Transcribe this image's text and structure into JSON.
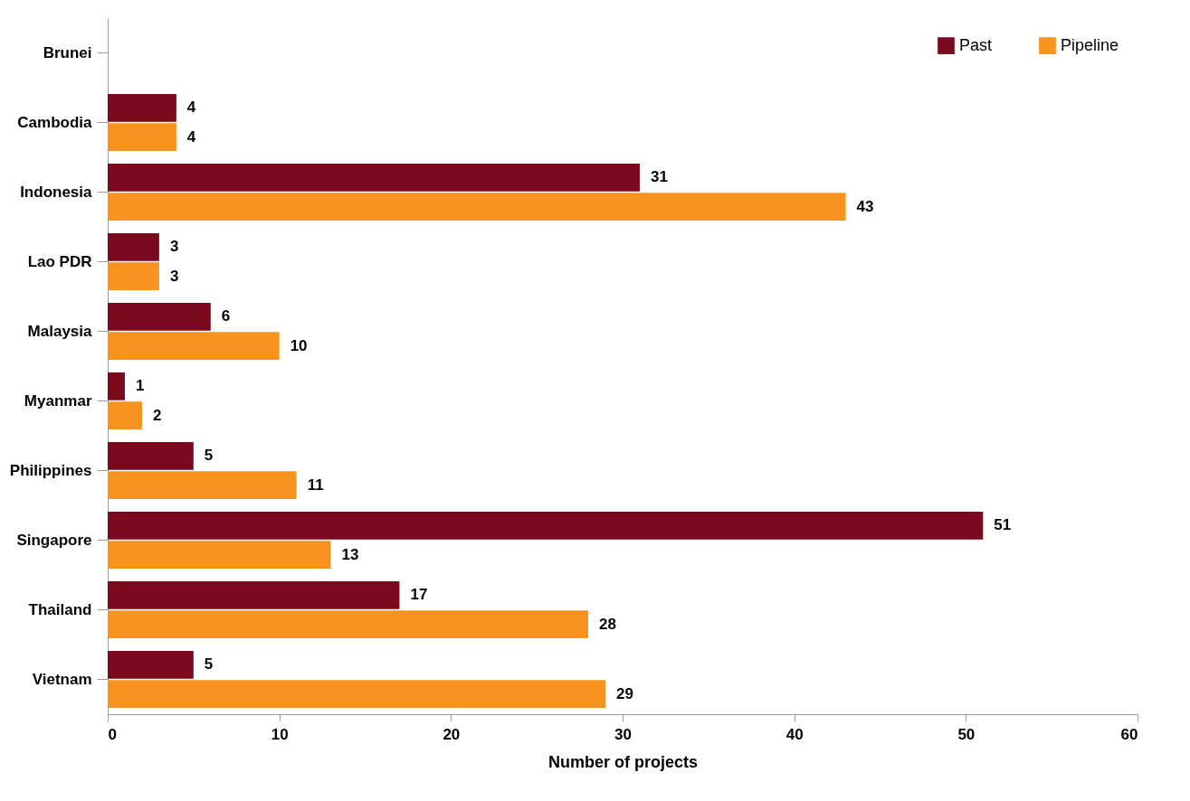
{
  "chart_data": {
    "type": "bar",
    "orientation": "horizontal",
    "xlabel": "Number of projects",
    "categories": [
      "Brunei",
      "Cambodia",
      "Indonesia",
      "Lao PDR",
      "Malaysia",
      "Myanmar",
      "Philippines",
      "Singapore",
      "Thailand",
      "Vietnam"
    ],
    "series": [
      {
        "name": "Past",
        "color": "#7b0a1f",
        "values": [
          null,
          4,
          31,
          3,
          6,
          1,
          5,
          51,
          17,
          5
        ]
      },
      {
        "name": "Pipeline",
        "color": "#f7931e",
        "values": [
          null,
          4,
          43,
          3,
          10,
          2,
          11,
          13,
          28,
          29
        ]
      }
    ],
    "xlim": [
      0,
      60
    ],
    "xticks": [
      0,
      10,
      20,
      30,
      40,
      50,
      60
    ],
    "grid": false,
    "legend": "top right",
    "data_labels": true
  }
}
